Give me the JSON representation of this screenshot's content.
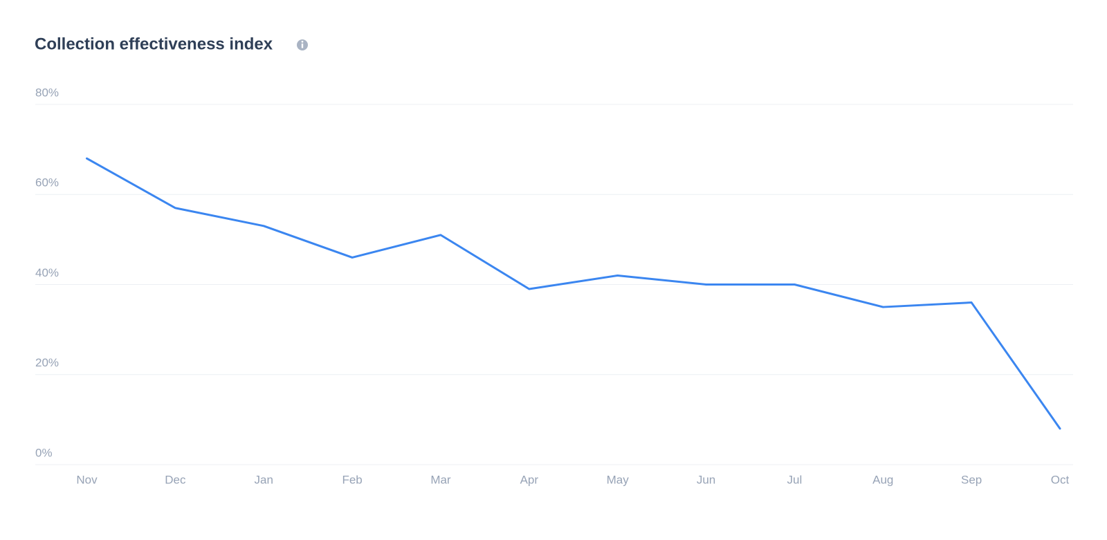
{
  "chart_data": {
    "type": "line",
    "title": "Collection effectiveness index",
    "categories": [
      "Nov",
      "Dec",
      "Jan",
      "Feb",
      "Mar",
      "Apr",
      "May",
      "Jun",
      "Jul",
      "Aug",
      "Sep",
      "Oct"
    ],
    "series": [
      {
        "color": "#3b86f0",
        "values": [
          68,
          57,
          53,
          46,
          51,
          39,
          42,
          40,
          40,
          35,
          36,
          8
        ]
      }
    ],
    "ylim": [
      0,
      80
    ],
    "yticks": [
      {
        "value": 0,
        "label": "0%"
      },
      {
        "value": 20,
        "label": "20%"
      },
      {
        "value": 40,
        "label": "40%"
      },
      {
        "value": 60,
        "label": "60%"
      },
      {
        "value": 80,
        "label": "80%"
      }
    ],
    "grid": true
  }
}
